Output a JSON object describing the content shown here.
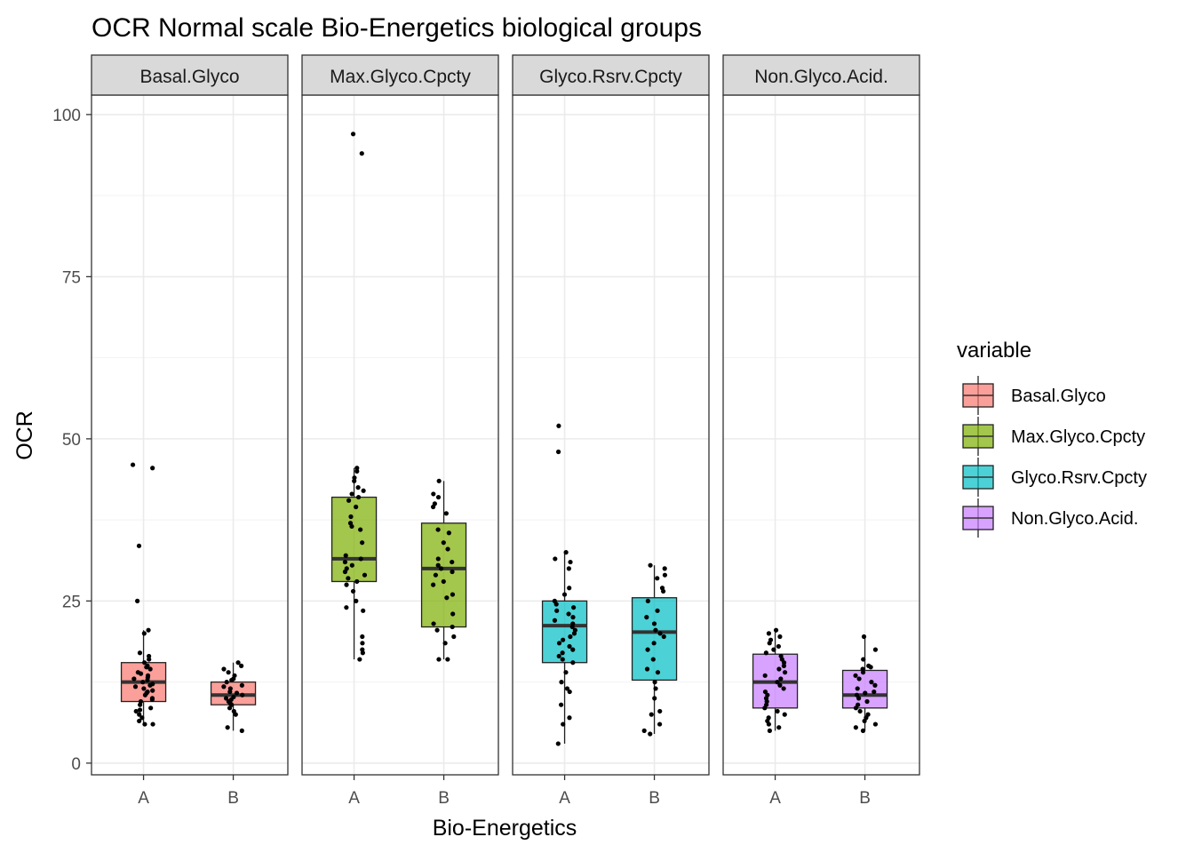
{
  "chart_data": {
    "type": "boxplot",
    "title": "OCR Normal scale Bio-Energetics biological groups",
    "xlabel": "Bio-Energetics",
    "ylabel": "OCR",
    "ylim": [
      -1.8,
      103
    ],
    "yticks": [
      0,
      25,
      50,
      75,
      100
    ],
    "categories": [
      "A",
      "B"
    ],
    "grid": true,
    "legend": {
      "title": "variable",
      "placement": "right",
      "entries": [
        {
          "name": "Basal.Glyco",
          "color": "#F8766D"
        },
        {
          "name": "Max.Glyco.Cpcty",
          "color": "#7CAE00"
        },
        {
          "name": "Glyco.Rsrv.Cpcty",
          "color": "#00BFC4"
        },
        {
          "name": "Non.Glyco.Acid.",
          "color": "#C77CFF"
        }
      ]
    },
    "panels": [
      {
        "strip": "Basal.Glyco",
        "color": "#F8766D",
        "groups": [
          {
            "category": "A",
            "q1": 9.5,
            "median": 12.5,
            "q3": 15.5,
            "whisker_low": 6,
            "whisker_high": 20.5,
            "points": [
              46,
              45.5,
              33.5,
              25,
              20.5,
              20,
              17,
              16.5,
              16,
              15.5,
              15,
              14.8,
              14.5,
              14,
              13.8,
              13.5,
              13.2,
              13,
              12.8,
              12.5,
              12.2,
              12,
              11.8,
              11.5,
              11.2,
              11,
              10.8,
              10.5,
              10,
              9.8,
              9.5,
              9,
              8.5,
              8.2,
              8,
              7.5,
              7,
              6.5,
              6,
              6
            ]
          },
          {
            "category": "B",
            "q1": 9,
            "median": 10.5,
            "q3": 12.5,
            "whisker_low": 5,
            "whisker_high": 15.5,
            "points": [
              15.5,
              15,
              14.5,
              14,
              13.5,
              13,
              12.8,
              12.5,
              12,
              11.8,
              11.5,
              11,
              10.8,
              10.5,
              10.2,
              10,
              9.8,
              9.5,
              9.2,
              9,
              8.5,
              8,
              7.5,
              5.5,
              5
            ]
          }
        ]
      },
      {
        "strip": "Max.Glyco.Cpcty",
        "color": "#7CAE00",
        "groups": [
          {
            "category": "A",
            "q1": 28,
            "median": 31.5,
            "q3": 41,
            "whisker_low": 16,
            "whisker_high": 45.5,
            "points": [
              97,
              94,
              45.5,
              45,
              44,
              43.5,
              42.5,
              42,
              41.5,
              41,
              40.5,
              39.5,
              38,
              37,
              36.5,
              36,
              34,
              32,
              31.5,
              31,
              30.5,
              30,
              29.5,
              29,
              28.5,
              28,
              27.5,
              26.5,
              25,
              24,
              23.5,
              19.5,
              18.5,
              17.5,
              17,
              16
            ]
          },
          {
            "category": "B",
            "q1": 21,
            "median": 30,
            "q3": 37,
            "whisker_low": 16,
            "whisker_high": 43.5,
            "points": [
              43.5,
              41.5,
              41,
              40,
              39.5,
              38.5,
              36,
              35.5,
              34,
              33,
              31.5,
              31,
              30.5,
              30,
              29.5,
              29,
              28,
              27.5,
              26,
              25.5,
              23,
              21.5,
              21,
              20.5,
              19.5,
              18.5,
              16,
              16
            ]
          }
        ]
      },
      {
        "strip": "Glyco.Rsrv.Cpcty",
        "color": "#00BFC4",
        "groups": [
          {
            "category": "A",
            "q1": 15.5,
            "median": 21.2,
            "q3": 25,
            "whisker_low": 3,
            "whisker_high": 32.5,
            "points": [
              52,
              48,
              32.5,
              31.5,
              31,
              30,
              27,
              26,
              25,
              24.5,
              24,
              23.5,
              23,
              22.5,
              22,
              21.5,
              21,
              20.5,
              20,
              19.5,
              19,
              18.5,
              18,
              17.5,
              17,
              16.5,
              16,
              15.5,
              14,
              12.5,
              11.5,
              11,
              9,
              7,
              6,
              3
            ]
          },
          {
            "category": "B",
            "q1": 12.8,
            "median": 20.2,
            "q3": 25.5,
            "whisker_low": 4.5,
            "whisker_high": 30.5,
            "points": [
              30.5,
              30,
              29,
              28.5,
              27,
              26.5,
              25,
              23.5,
              22.5,
              21.5,
              20.5,
              20,
              19.5,
              18.5,
              17.5,
              16,
              14.5,
              14,
              12.5,
              11.5,
              10,
              8,
              7.5,
              6,
              5,
              4.5
            ]
          }
        ]
      },
      {
        "strip": "Non.Glyco.Acid.",
        "color": "#C77CFF",
        "groups": [
          {
            "category": "A",
            "q1": 8.5,
            "median": 12.5,
            "q3": 16.8,
            "whisker_low": 5,
            "whisker_high": 20.5,
            "points": [
              20.5,
              20,
              19.5,
              19,
              18.5,
              18,
              17.5,
              17,
              16.5,
              16,
              15.5,
              15,
              14.5,
              14,
              13.5,
              13,
              12.5,
              12,
              11.5,
              11,
              10.5,
              10,
              9.5,
              9,
              8.5,
              8,
              7.5,
              7,
              6.5,
              6,
              5.5,
              5
            ]
          },
          {
            "category": "B",
            "q1": 8.5,
            "median": 10.5,
            "q3": 14.3,
            "whisker_low": 5,
            "whisker_high": 19.5,
            "points": [
              19.5,
              17.5,
              16,
              15,
              14.8,
              14.5,
              14,
              13.5,
              13,
              12.5,
              12,
              11.5,
              11,
              10.8,
              10.5,
              10,
              9.5,
              9,
              8.5,
              8,
              7.5,
              7,
              6.5,
              6,
              5.5,
              5
            ]
          }
        ]
      }
    ]
  }
}
